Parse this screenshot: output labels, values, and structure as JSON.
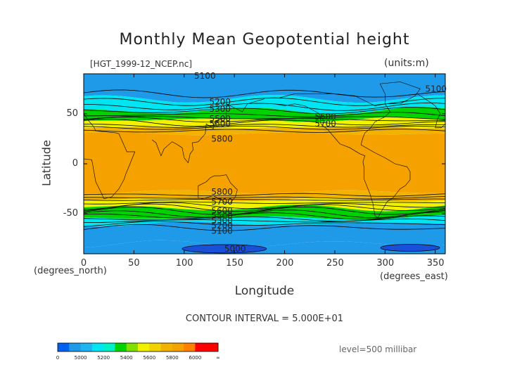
{
  "chart_data": {
    "type": "contour-map",
    "title": "Monthly Mean Geopotential height",
    "file_label": "[HGT_1999-12_NCEP.nc]",
    "units_label": "(units:m)",
    "xlabel": "Longitude",
    "ylabel": "Latitude",
    "x_units": "(degrees_east)",
    "y_units": "(degrees_north)",
    "xlim": [
      0,
      360
    ],
    "ylim": [
      -90,
      90
    ],
    "x_ticks": [
      0,
      50,
      100,
      150,
      200,
      250,
      300,
      350
    ],
    "y_ticks": [
      50,
      0,
      -50
    ],
    "contour_interval_text": "CONTOUR INTERVAL = 5.000E+01",
    "level_text": "level=500 millibar",
    "contour_labels": [
      {
        "text": "5100",
        "lon": 110,
        "lat": 88
      },
      {
        "text": "5100",
        "lon": 340,
        "lat": 75
      },
      {
        "text": "5200",
        "lon": 125,
        "lat": 62
      },
      {
        "text": "5300",
        "lon": 125,
        "lat": 55
      },
      {
        "text": "5500",
        "lon": 125,
        "lat": 45
      },
      {
        "text": "5600",
        "lon": 125,
        "lat": 40
      },
      {
        "text": "5600",
        "lon": 230,
        "lat": 47
      },
      {
        "text": "5700",
        "lon": 230,
        "lat": 40
      },
      {
        "text": "5800",
        "lon": 127,
        "lat": 25
      },
      {
        "text": "5800",
        "lon": 127,
        "lat": -28
      },
      {
        "text": "5700",
        "lon": 127,
        "lat": -38
      },
      {
        "text": "5600",
        "lon": 127,
        "lat": -47
      },
      {
        "text": "5500",
        "lon": 127,
        "lat": -52
      },
      {
        "text": "5300",
        "lon": 127,
        "lat": -57
      },
      {
        "text": "5200",
        "lon": 127,
        "lat": -62
      },
      {
        "text": "5100",
        "lon": 127,
        "lat": -67
      },
      {
        "text": "5000",
        "lon": 140,
        "lat": -85
      }
    ],
    "height_bands": [
      {
        "from_lat": 90,
        "to_lat": 65,
        "color": "#1e9ae8"
      },
      {
        "from_lat": 65,
        "to_lat": 53,
        "color": "#00e5f2"
      },
      {
        "from_lat": 53,
        "to_lat": 44,
        "color": "#00d200"
      },
      {
        "from_lat": 44,
        "to_lat": 36,
        "color": "#f2f200"
      },
      {
        "from_lat": 36,
        "to_lat": 30,
        "color": "#f2b200"
      },
      {
        "from_lat": 30,
        "to_lat": -28,
        "color": "#f5a100"
      },
      {
        "from_lat": -28,
        "to_lat": -36,
        "color": "#f2b200"
      },
      {
        "from_lat": -36,
        "to_lat": -44,
        "color": "#f2f200"
      },
      {
        "from_lat": -44,
        "to_lat": -54,
        "color": "#00d200"
      },
      {
        "from_lat": -54,
        "to_lat": -60,
        "color": "#00e5f2"
      },
      {
        "from_lat": -60,
        "to_lat": -80,
        "color": "#1e9ae8"
      },
      {
        "from_lat": -80,
        "to_lat": -90,
        "color": "#1e9ae8"
      }
    ],
    "colorbar": {
      "labels": [
        "0",
        "5000",
        "5200",
        "5400",
        "5600",
        "5800",
        "6000",
        "∞"
      ],
      "colors": [
        "#0060f0",
        "#1e9ae8",
        "#1eb4f0",
        "#00e5f2",
        "#00f0c8",
        "#00d200",
        "#80e000",
        "#f2f200",
        "#f2d200",
        "#f2b200",
        "#f5a100",
        "#ff8000",
        "#ff0000",
        "#ff0000"
      ]
    }
  }
}
